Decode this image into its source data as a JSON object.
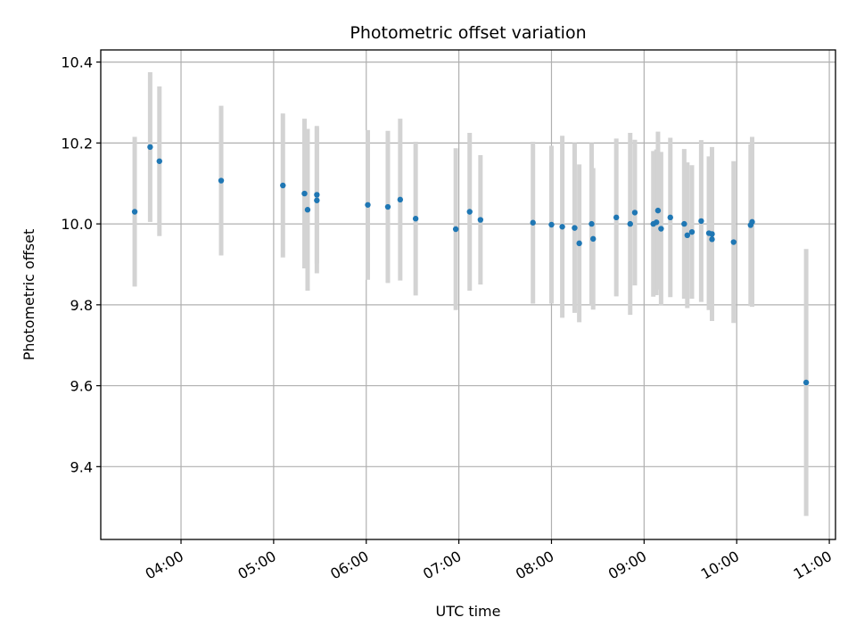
{
  "chart_data": {
    "type": "scatter",
    "title": "Photometric offset variation",
    "xlabel": "UTC time",
    "ylabel": "Photometric offset",
    "xlim": [
      "03:08",
      "11:04"
    ],
    "ylim": [
      9.22,
      10.43
    ],
    "grid": true,
    "x_ticks": [
      "04:00",
      "05:00",
      "06:00",
      "07:00",
      "08:00",
      "09:00",
      "10:00",
      "11:00"
    ],
    "y_ticks": [
      9.4,
      9.6,
      9.8,
      10.0,
      10.2,
      10.4
    ],
    "y_tick_labels": [
      "9.4",
      "9.6",
      "9.8",
      "10.0",
      "10.2",
      "10.4"
    ],
    "colors": {
      "point": "#1f77b4",
      "errorbar": "#d3d3d3",
      "grid": "#b0b0b0"
    },
    "series": [
      {
        "x": [
          "03:30",
          "03:40",
          "03:46",
          "04:26",
          "05:06",
          "05:20",
          "05:22",
          "05:28",
          "05:28",
          "06:01",
          "06:14",
          "06:22",
          "06:32",
          "06:58",
          "07:07",
          "07:14",
          "07:48",
          "08:00",
          "08:07",
          "08:15",
          "08:18",
          "08:26",
          "08:27",
          "08:42",
          "08:51",
          "08:54",
          "09:06",
          "09:08",
          "09:09",
          "09:11",
          "09:17",
          "09:26",
          "09:28",
          "09:31",
          "09:37",
          "09:42",
          "09:44",
          "09:44",
          "09:58",
          "10:09",
          "10:10",
          "10:45"
        ],
        "y": [
          10.03,
          10.19,
          10.155,
          10.107,
          10.095,
          10.075,
          10.035,
          10.072,
          10.058,
          10.047,
          10.042,
          10.06,
          10.013,
          9.987,
          10.03,
          10.01,
          10.003,
          9.998,
          9.993,
          9.99,
          9.952,
          10.0,
          9.963,
          10.016,
          10.0,
          10.028,
          10.0,
          10.004,
          10.033,
          9.988,
          10.016,
          10.0,
          9.972,
          9.98,
          10.007,
          9.977,
          9.975,
          9.962,
          9.955,
          9.997,
          10.005,
          9.608
        ],
        "yerr": [
          0.185,
          0.185,
          0.185,
          0.185,
          0.178,
          0.185,
          0.2,
          0.17,
          0.18,
          0.185,
          0.188,
          0.2,
          0.19,
          0.2,
          0.195,
          0.16,
          0.2,
          0.195,
          0.225,
          0.21,
          0.195,
          0.2,
          0.175,
          0.195,
          0.225,
          0.18,
          0.18,
          0.18,
          0.195,
          0.19,
          0.197,
          0.185,
          0.18,
          0.165,
          0.2,
          0.19,
          0.215,
          0.2,
          0.2,
          0.2,
          0.21,
          0.33
        ]
      }
    ]
  }
}
